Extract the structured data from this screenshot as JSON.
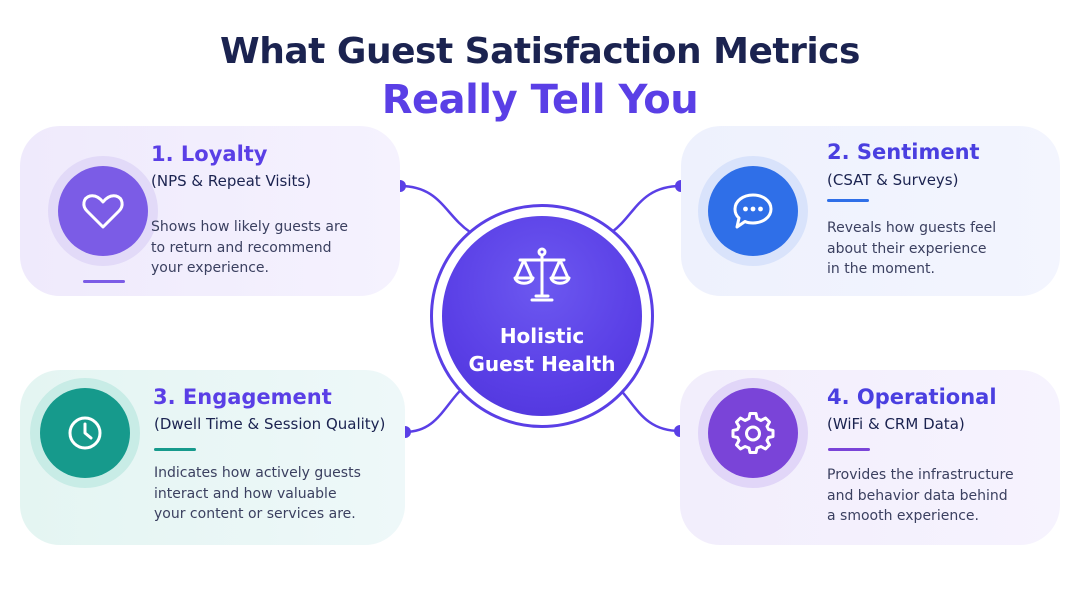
{
  "title": "What Guest Satisfaction Metrics",
  "subtitle": "Really Tell You",
  "hub": {
    "line1": "Holistic",
    "line2": "Guest Health",
    "icon": "scale-icon"
  },
  "colors": {
    "title": "#1b2350",
    "accent": "#5a3fe6",
    "loyalty": "#7b5ce6",
    "sentiment": "#2f6fe8",
    "engagement": "#169a8c",
    "operational": "#7a44d8"
  },
  "cards": [
    {
      "title": "1. Loyalty",
      "subtitle": "(NPS & Repeat Visits)",
      "desc": [
        "Shows how likely guests are",
        "to return and recommend",
        "your experience."
      ],
      "icon": "heart-icon"
    },
    {
      "title": "2. Sentiment",
      "subtitle": "(CSAT & Surveys)",
      "desc": [
        "Reveals how guests feel",
        "about their experience",
        "in the moment."
      ],
      "icon": "chat-bubble-icon"
    },
    {
      "title": "3. Engagement",
      "subtitle": "(Dwell Time & Session Quality)",
      "desc": [
        "Indicates how actively guests",
        "interact and how valuable",
        "your content or services are."
      ],
      "icon": "clock-icon"
    },
    {
      "title": "4. Operational",
      "subtitle": "(WiFi & CRM Data)",
      "desc": [
        "Provides the infrastructure",
        "and behavior data behind",
        "a smooth experience."
      ],
      "icon": "gear-icon"
    }
  ]
}
